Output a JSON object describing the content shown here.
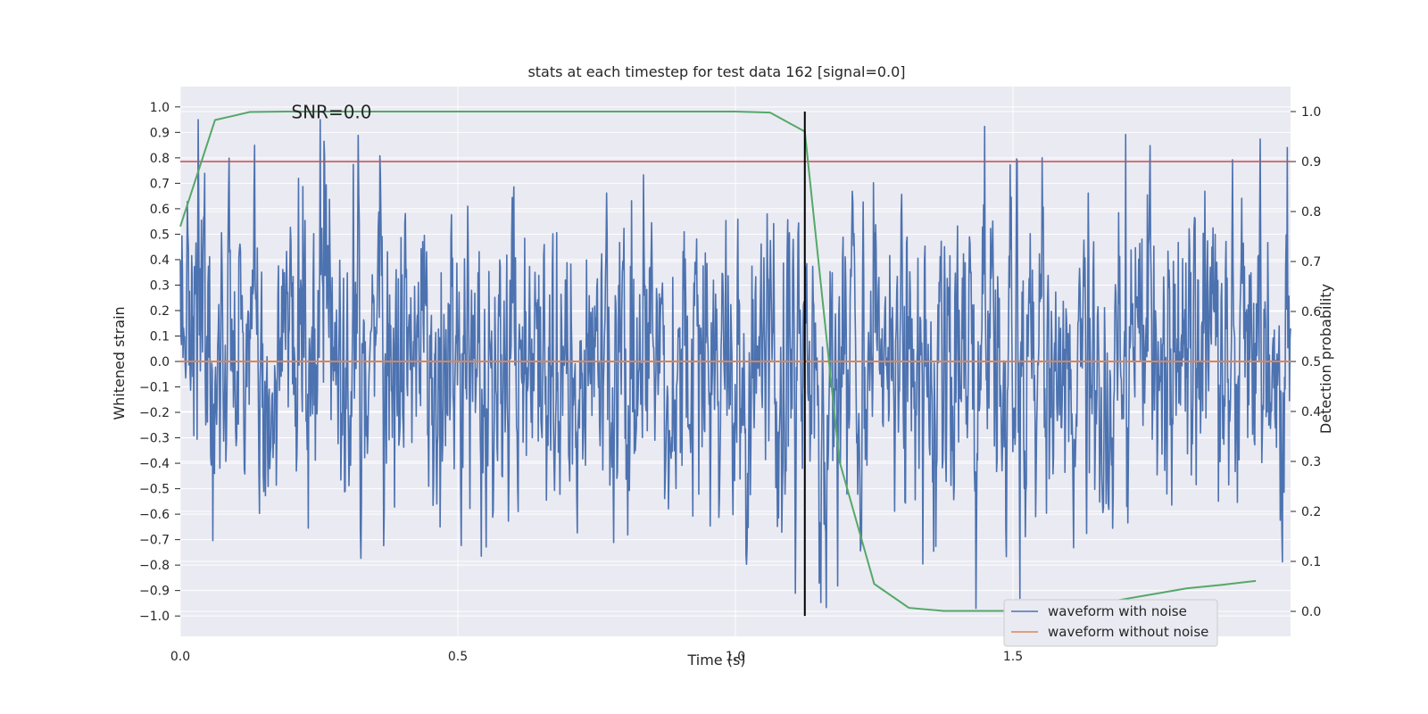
{
  "chart_data": {
    "type": "line",
    "title": "stats at each timestep for test data 162 [signal=0.0]",
    "xlabel": "Time (s)",
    "ylabel": "Whitened strain",
    "y2label": "Detection probability",
    "xlim": [
      0.0,
      2.0
    ],
    "ylim": [
      -1.08,
      1.08
    ],
    "y2lim": [
      -0.05,
      1.05
    ],
    "xticks": [
      0.0,
      0.5,
      1.0,
      1.5
    ],
    "xtick_labels": [
      "0.0",
      "0.5",
      "1.0",
      "1.5"
    ],
    "yticks": [
      1.0,
      0.9,
      0.8,
      0.7,
      0.6,
      0.5,
      0.4,
      0.3,
      0.2,
      0.1,
      0.0,
      -0.1,
      -0.2,
      -0.3,
      -0.4,
      -0.5,
      -0.6,
      -0.7,
      -0.8,
      -0.9,
      -1.0
    ],
    "ytick_labels": [
      "1.0",
      "0.9",
      "0.8",
      "0.7",
      "0.6",
      "0.5",
      "0.4",
      "0.3",
      "0.2",
      "0.1",
      "0.0",
      "−0.1",
      "−0.2",
      "−0.3",
      "−0.4",
      "−0.5",
      "−0.6",
      "−0.7",
      "−0.8",
      "−0.9",
      "−1.0"
    ],
    "y2ticks": [
      1.0,
      0.9,
      0.8,
      0.7,
      0.6,
      0.5,
      0.4,
      0.3,
      0.2,
      0.1,
      0.0
    ],
    "y2tick_labels": [
      "1.0",
      "0.9",
      "0.8",
      "0.7",
      "0.6",
      "0.5",
      "0.4",
      "0.3",
      "0.2",
      "0.1",
      "0.0"
    ],
    "annotation": "SNR=0.0",
    "annotation_at": [
      0.2,
      0.98
    ],
    "noise_series": {
      "name": "waveform with noise",
      "color": "#4c72b0",
      "n_samples": 2048,
      "x_range": [
        0.0,
        2.0
      ],
      "amplitude_range": [
        -0.97,
        0.95
      ],
      "note": "random whitened noise; individual samples not legible"
    },
    "series": [
      {
        "name": "waveform without noise",
        "color": "#dd8452",
        "axis": "left",
        "x": [
          0.0,
          2.0
        ],
        "y": [
          0.0,
          0.0
        ]
      },
      {
        "name": "detection probability",
        "color": "#55a868",
        "axis": "right",
        "x": [
          0.0,
          0.0625,
          0.125,
          0.1875,
          0.25,
          0.3125,
          0.375,
          0.4375,
          0.5,
          0.5625,
          0.625,
          0.6875,
          0.75,
          0.8125,
          0.875,
          0.9375,
          1.0,
          1.0625,
          1.125,
          1.1875,
          1.25,
          1.3125,
          1.375,
          1.4375,
          1.5,
          1.5625,
          1.625,
          1.6875,
          1.75,
          1.8125,
          1.875,
          1.9375
        ],
        "y": [
          0.77,
          0.983,
          0.999,
          1.0,
          1.0,
          1.0,
          1.0,
          1.0,
          1.0,
          1.0,
          1.0,
          1.0,
          1.0,
          1.0,
          1.0,
          1.0,
          1.0,
          0.998,
          0.96,
          0.3,
          0.055,
          0.007,
          0.001,
          0.001,
          0.001,
          0.004,
          0.012,
          0.022,
          0.034,
          0.046,
          0.053,
          0.061
        ]
      }
    ],
    "threshold": {
      "value": 0.9,
      "axis": "right",
      "color": "#c44e52"
    },
    "vline": {
      "x": 1.125,
      "color": "#000000",
      "y_from": -1.0,
      "y_to": 1.0
    },
    "legend": {
      "position": "lower-right",
      "entries": [
        {
          "label": "waveform with noise",
          "color": "#4c72b0"
        },
        {
          "label": "waveform without noise",
          "color": "#dd8452"
        }
      ]
    },
    "colors": {
      "background": "#eaeaf2",
      "grid": "#ffffff"
    }
  }
}
